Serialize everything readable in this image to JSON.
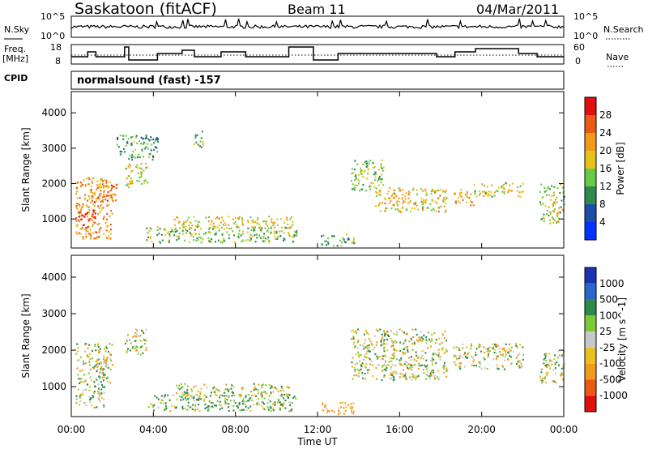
{
  "header": {
    "site": "Saskatoon (fitACF)",
    "beam": "Beam 11",
    "date": "04/Mar/2011"
  },
  "side_labels": {
    "nsky": "N.Sky",
    "nsearch": "N.Search",
    "freq": "Freq.",
    "freq_unit": "[MHz]",
    "nave": "Nave",
    "cpid": "CPID"
  },
  "top_axes": {
    "nsky_ticks": [
      "10^5",
      "10^0"
    ],
    "nsearch_ticks": [
      "10^5",
      "10^0"
    ],
    "freq_ticks": [
      "18",
      "8"
    ],
    "nave_ticks": [
      "60",
      "0"
    ]
  },
  "cpid_text": "normalsound (fast) -157",
  "colors": {
    "power": [
      "#0033ff",
      "#1c4ea8",
      "#2f8a4f",
      "#66cc44",
      "#e6c21a",
      "#f29a1a",
      "#ea5a14",
      "#e01010"
    ],
    "velocity": [
      "#1a33b3",
      "#2a66cc",
      "#2b8a48",
      "#7ecb3a",
      "#c8c8c8",
      "#e8c020",
      "#f29a1a",
      "#ea5a14",
      "#e01010"
    ]
  },
  "chart_data": [
    {
      "type": "heatmap",
      "ylabel": "Slant Range [km]",
      "yticks": [
        1000,
        2000,
        3000,
        4000
      ],
      "ylim": [
        180,
        4600
      ],
      "xlim": [
        0,
        24
      ],
      "colorbar": {
        "label": "Power [dB]",
        "ticks": [
          4,
          8,
          12,
          16,
          20,
          24,
          28
        ],
        "range": [
          0,
          32
        ]
      },
      "regions": [
        {
          "t0": 0.2,
          "t1": 2.0,
          "r0": 450,
          "r1": 2200,
          "v": 22
        },
        {
          "t0": 0.3,
          "t1": 1.2,
          "r0": 600,
          "r1": 1300,
          "v": 27
        },
        {
          "t0": 1.0,
          "t1": 2.2,
          "r0": 1500,
          "r1": 2000,
          "v": 24
        },
        {
          "t0": 2.6,
          "t1": 3.7,
          "r0": 1900,
          "r1": 2600,
          "v": 18
        },
        {
          "t0": 2.2,
          "t1": 4.2,
          "r0": 2700,
          "r1": 3400,
          "v": 11
        },
        {
          "t0": 3.6,
          "t1": 11.0,
          "r0": 350,
          "r1": 800,
          "v": 14
        },
        {
          "t0": 5.0,
          "t1": 10.8,
          "r0": 750,
          "r1": 1100,
          "v": 18
        },
        {
          "t0": 5.9,
          "t1": 6.4,
          "r0": 3000,
          "r1": 3500,
          "v": 14
        },
        {
          "t0": 12.1,
          "t1": 13.8,
          "r0": 260,
          "r1": 600,
          "v": 12
        },
        {
          "t0": 13.6,
          "t1": 15.2,
          "r0": 1800,
          "r1": 2700,
          "v": 15
        },
        {
          "t0": 14.8,
          "t1": 18.3,
          "r0": 1200,
          "r1": 1900,
          "v": 19
        },
        {
          "t0": 18.6,
          "t1": 19.6,
          "r0": 1400,
          "r1": 1900,
          "v": 21
        },
        {
          "t0": 19.6,
          "t1": 22.0,
          "r0": 1650,
          "r1": 2050,
          "v": 17
        },
        {
          "t0": 22.8,
          "t1": 24.0,
          "r0": 900,
          "r1": 2000,
          "v": 16
        }
      ]
    },
    {
      "type": "heatmap",
      "ylabel": "Slant Range [km]",
      "xlabel": "Time UT",
      "yticks": [
        1000,
        2000,
        3000,
        4000
      ],
      "ylim": [
        180,
        4600
      ],
      "xlim": [
        0,
        24
      ],
      "xticks": [
        "00:00",
        "04:00",
        "08:00",
        "12:00",
        "16:00",
        "20:00",
        "00:00"
      ],
      "xtick_hours": [
        0,
        4,
        8,
        12,
        16,
        20,
        24
      ],
      "colorbar": {
        "label": "Velocity [m s^-1]",
        "ticks": [
          1000,
          500,
          100,
          25,
          -25,
          -100,
          -500,
          -1000
        ]
      },
      "regions": [
        {
          "t0": 0.2,
          "t1": 2.0,
          "r0": 1100,
          "r1": 2200,
          "v": 0
        },
        {
          "t0": 0.2,
          "t1": 1.6,
          "r0": 450,
          "r1": 1100,
          "v": 80
        },
        {
          "t0": 2.6,
          "t1": 3.7,
          "r0": 1900,
          "r1": 2600,
          "v": 0
        },
        {
          "t0": 3.6,
          "t1": 11.0,
          "r0": 350,
          "r1": 800,
          "v": 80
        },
        {
          "t0": 5.0,
          "t1": 10.8,
          "r0": 750,
          "r1": 1100,
          "v": 0
        },
        {
          "t0": 12.1,
          "t1": 13.8,
          "r0": 260,
          "r1": 600,
          "v": -200
        },
        {
          "t0": 13.6,
          "t1": 18.3,
          "r0": 1200,
          "r1": 2600,
          "v": 0
        },
        {
          "t0": 18.6,
          "t1": 22.0,
          "r0": 1500,
          "r1": 2200,
          "v": 0
        },
        {
          "t0": 22.8,
          "t1": 24.0,
          "r0": 1100,
          "r1": 2000,
          "v": 0
        }
      ]
    }
  ]
}
